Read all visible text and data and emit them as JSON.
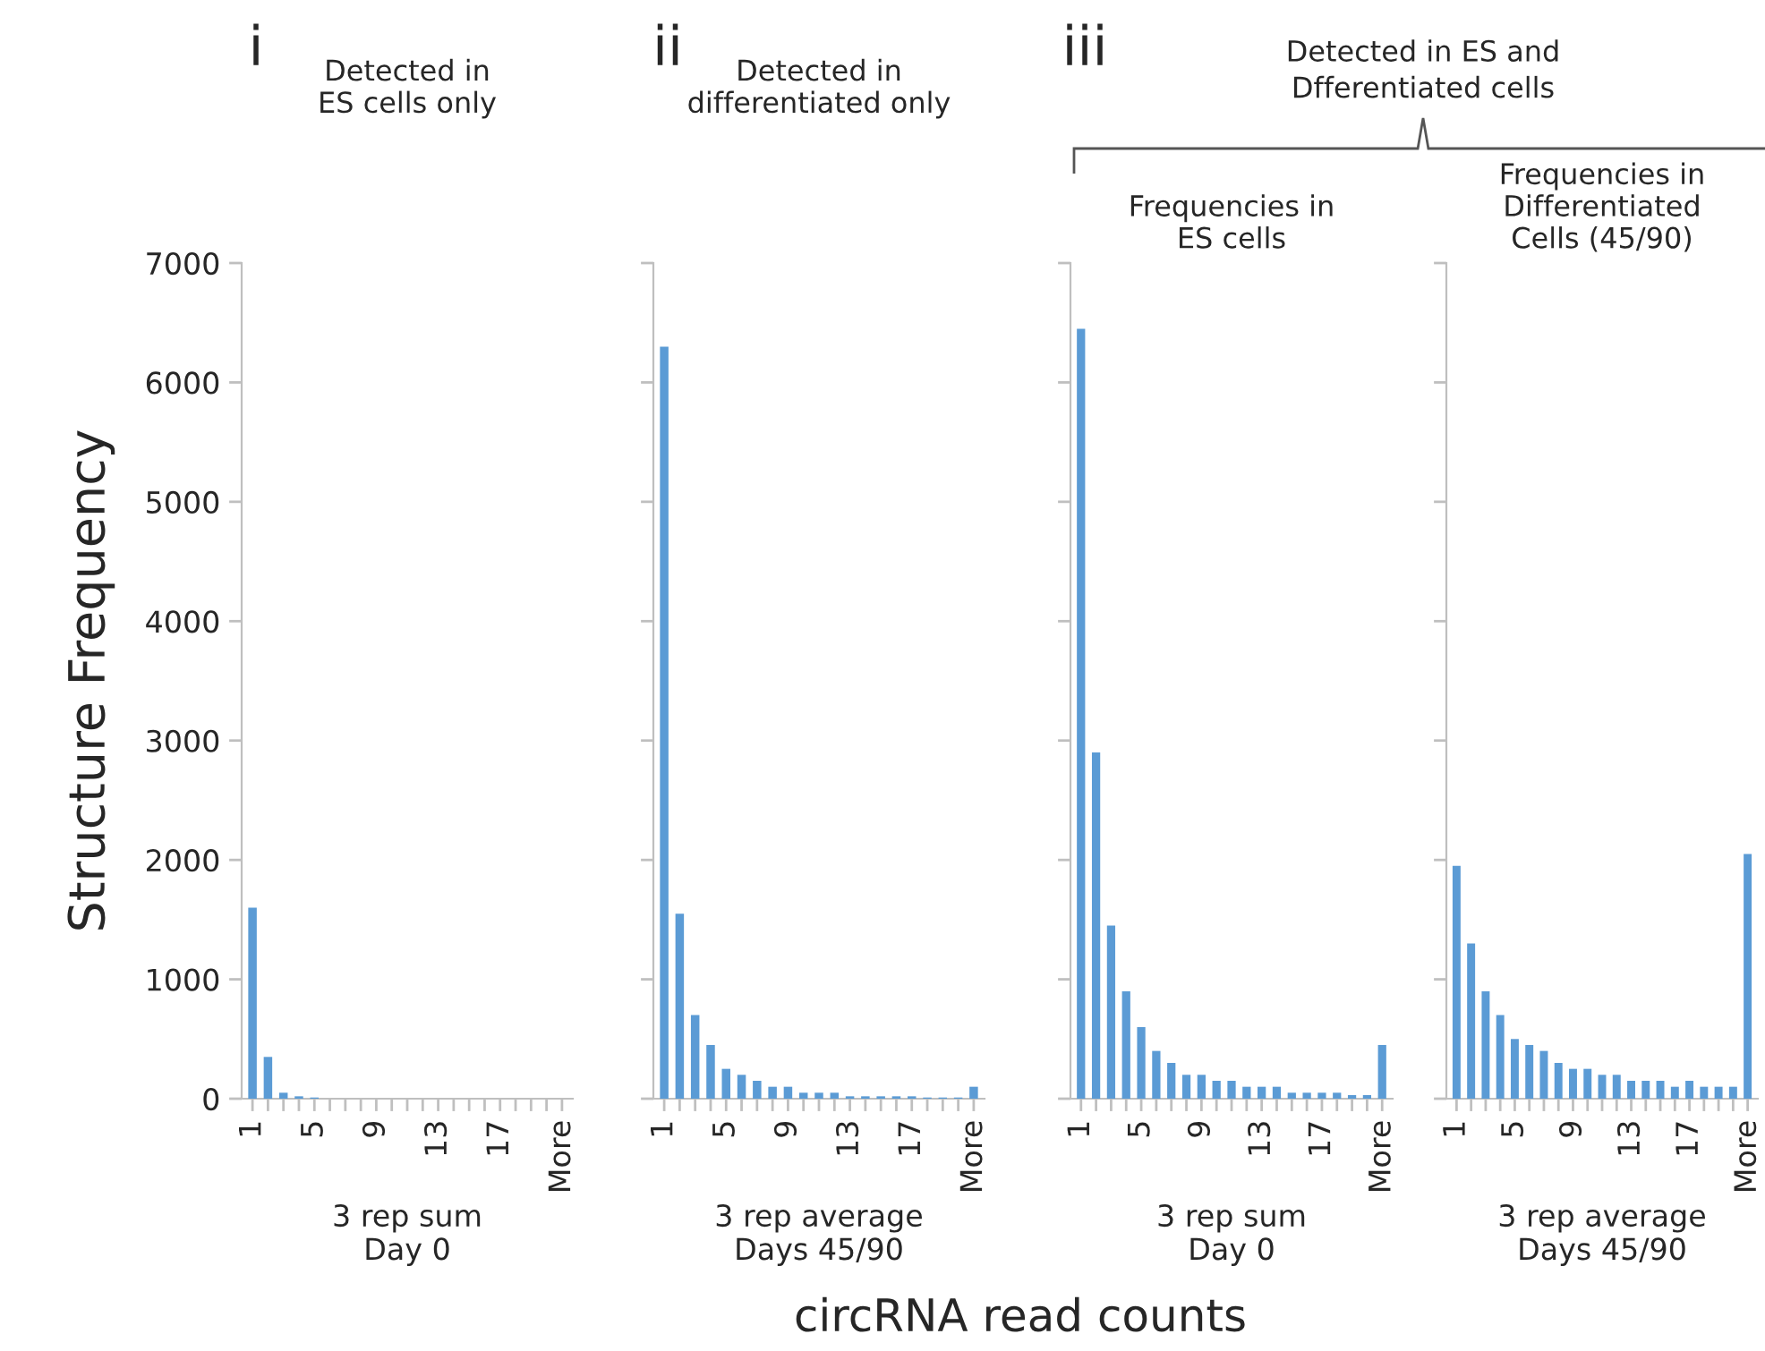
{
  "chart_data": [
    {
      "type": "bar",
      "title": "Detected in\nES cells only",
      "xlabel": "3 rep sum\nDay 0",
      "ylabel": "Structure Frequency",
      "annotations": [
        "i",
        "circRNA read counts"
      ],
      "categories": [
        "1",
        null,
        null,
        null,
        "5",
        null,
        null,
        null,
        "9",
        null,
        null,
        null,
        "13",
        null,
        null,
        null,
        "17",
        null,
        null,
        null,
        "More"
      ],
      "values": [
        1600,
        350,
        50,
        20,
        10,
        0,
        0,
        0,
        0,
        0,
        0,
        0,
        0,
        0,
        0,
        0,
        0,
        0,
        0,
        0,
        0
      ],
      "color": "#5b9bd5",
      "ylim": [
        0,
        7000
      ],
      "yticks": [
        0,
        1000,
        2000,
        3000,
        4000,
        5000,
        6000,
        7000
      ],
      "grid": false
    },
    {
      "type": "bar",
      "title": "Detected in\ndifferentiated only",
      "xlabel": "3 rep average\nDays 45/90",
      "annotations": [
        "ii"
      ],
      "categories": [
        "1",
        null,
        null,
        null,
        "5",
        null,
        null,
        null,
        "9",
        null,
        null,
        null,
        "13",
        null,
        null,
        null,
        "17",
        null,
        null,
        null,
        "More"
      ],
      "values": [
        6300,
        1550,
        700,
        450,
        250,
        200,
        150,
        100,
        100,
        50,
        50,
        50,
        20,
        20,
        20,
        20,
        20,
        10,
        10,
        10,
        100
      ],
      "color": "#5b9bd5",
      "ylim": [
        0,
        7000
      ],
      "yticks": [
        0,
        1000,
        2000,
        3000,
        4000,
        5000,
        6000,
        7000
      ],
      "tick_labels": "x",
      "grid": false
    },
    {
      "type": "bar",
      "title": "Frequencies in\nES cells",
      "xlabel": "3 rep sum\nDay 0",
      "annotations": [
        "iii",
        "Detected in ES and\nDfferentiated cells"
      ],
      "categories": [
        "1",
        null,
        null,
        null,
        "5",
        null,
        null,
        null,
        "9",
        null,
        null,
        null,
        "13",
        null,
        null,
        null,
        "17",
        null,
        null,
        null,
        "More"
      ],
      "values": [
        6450,
        2900,
        1450,
        900,
        600,
        400,
        300,
        200,
        200,
        150,
        150,
        100,
        100,
        100,
        50,
        50,
        50,
        50,
        30,
        30,
        450
      ],
      "color": "#5b9bd5",
      "ylim": [
        0,
        7000
      ],
      "yticks": [
        0,
        1000,
        2000,
        3000,
        4000,
        5000,
        6000,
        7000
      ],
      "tick_labels": "x",
      "grid": false
    },
    {
      "type": "bar",
      "title": "Frequencies in\nDifferentiated\nCells (45/90)",
      "xlabel": "3 rep average\nDays 45/90",
      "categories": [
        "1",
        null,
        null,
        null,
        "5",
        null,
        null,
        null,
        "9",
        null,
        null,
        null,
        "13",
        null,
        null,
        null,
        "17",
        null,
        null,
        null,
        "More"
      ],
      "values": [
        1950,
        1300,
        900,
        700,
        500,
        450,
        400,
        300,
        250,
        250,
        200,
        200,
        150,
        150,
        150,
        100,
        150,
        100,
        100,
        100,
        2050
      ],
      "color": "#5b9bd5",
      "ylim": [
        0,
        7000
      ],
      "yticks": [
        0,
        1000,
        2000,
        3000,
        4000,
        5000,
        6000,
        7000
      ],
      "tick_labels": "x",
      "grid": false
    }
  ]
}
